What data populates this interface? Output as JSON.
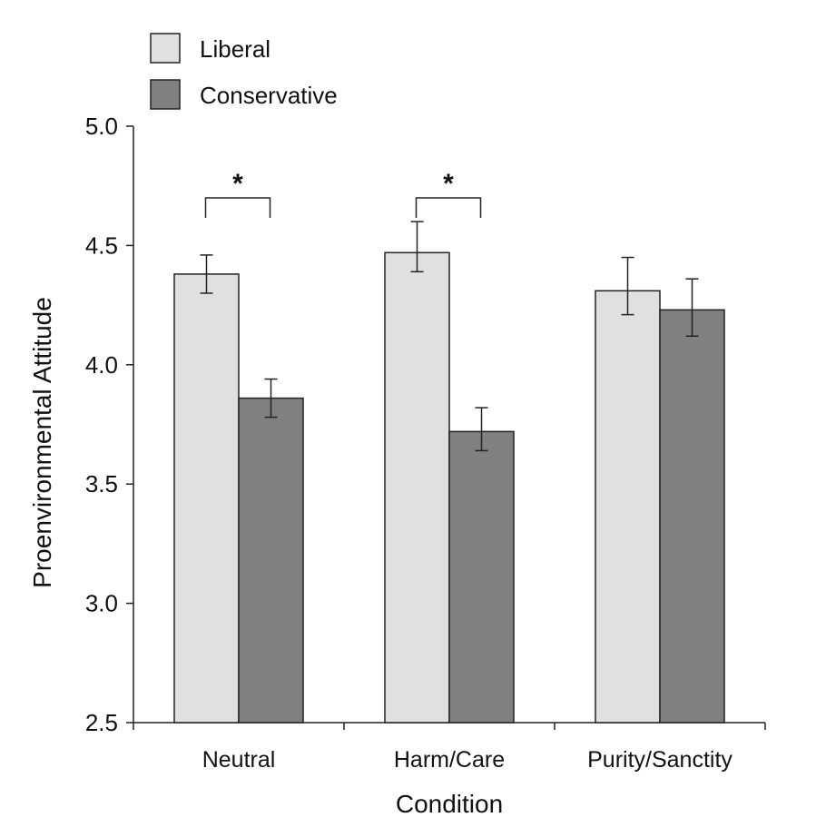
{
  "chart_data": {
    "type": "bar",
    "xlabel": "Condition",
    "ylabel": "Proenvironmental Attitude",
    "ylim": [
      2.5,
      5.0
    ],
    "yticks": [
      "2.5",
      "3.0",
      "3.5",
      "4.0",
      "4.5",
      "5.0"
    ],
    "categories": [
      "Neutral",
      "Harm/Care",
      "Purity/Sanctity"
    ],
    "series": [
      {
        "name": "Liberal",
        "values": [
          4.38,
          4.47,
          4.31
        ],
        "error_low": [
          4.3,
          4.39,
          4.21
        ],
        "error_high": [
          4.46,
          4.6,
          4.45
        ],
        "color": "#e0e0e0"
      },
      {
        "name": "Conservative",
        "values": [
          3.86,
          3.72,
          4.23
        ],
        "error_low": [
          3.78,
          3.64,
          4.12
        ],
        "error_high": [
          3.94,
          3.82,
          4.36
        ],
        "color": "#808080"
      }
    ],
    "significance": [
      {
        "category": "Neutral",
        "label": "*"
      },
      {
        "category": "Harm/Care",
        "label": "*"
      }
    ],
    "legend_position": "top-left",
    "grid": false
  }
}
